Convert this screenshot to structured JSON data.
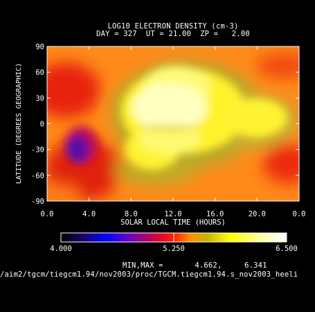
{
  "title_line1": "LOG10 ELECTRON DENSITY (cm-3)",
  "title_line2": "DAY = 327  UT = 21.00  ZP =   2.00",
  "chart_data": {
    "type": "heatmap",
    "title": "LOG10 ELECTRON DENSITY (cm-3)",
    "xlabel": "SOLAR LOCAL TIME (HOURS)",
    "ylabel": "LATITUDE (DEGREES GEOGRAPHIC)",
    "x_ticks": [
      "0.0",
      "4.0",
      "8.0",
      "12.0",
      "16.0",
      "20.0",
      "0.0"
    ],
    "y_ticks": [
      "90",
      "60",
      "30",
      "0",
      "-30",
      "-60",
      "-90"
    ],
    "xlim": [
      0,
      24
    ],
    "ylim": [
      -90,
      90
    ],
    "colorbar": {
      "min_label": "4.000",
      "mid_label": "5.250",
      "max_label": "6.500",
      "min": 4.0,
      "max": 6.5
    },
    "data_min": 4.662,
    "data_max": 6.341,
    "features": [
      {
        "lt": 12.5,
        "lat": 10,
        "value": 6.3
      },
      {
        "lt": 3.2,
        "lat": -40,
        "value": 4.7
      },
      {
        "lt": 1.5,
        "lat": 55,
        "value": 5.2
      },
      {
        "lt": 22.5,
        "lat": -45,
        "value": 5.2
      }
    ]
  },
  "minmax_line": "MIN,MAX =       4.662,     6.341",
  "file_path": "/aim2/tgcm/tiegcm1.94/nov2003/proc/TGCM.tiegcm1.94.s_nov2003_heeli"
}
